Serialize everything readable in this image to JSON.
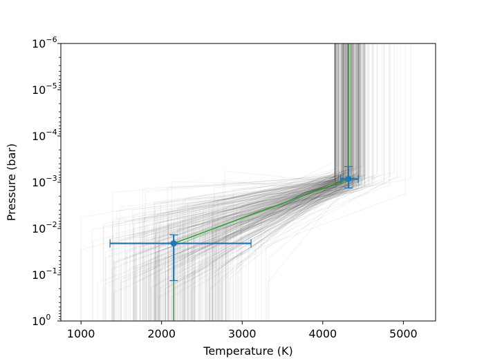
{
  "chart_data": {
    "type": "line",
    "xlabel": "Temperature (K)",
    "ylabel": "Pressure (bar)",
    "xlim": [
      750,
      5400
    ],
    "ylim": [
      1,
      1e-06
    ],
    "y_scale": "log",
    "y_inverted": true,
    "grid": false,
    "x_ticks": [
      1000,
      2000,
      3000,
      4000,
      5000
    ],
    "x_tick_labels": [
      "1000",
      "2000",
      "3000",
      "4000",
      "5000"
    ],
    "y_ticks": [
      {
        "value": 1,
        "base": "10",
        "exp": "0"
      },
      {
        "value": 0.1,
        "base": "10",
        "exp": "−1"
      },
      {
        "value": 0.01,
        "base": "10",
        "exp": "−2"
      },
      {
        "value": 0.001,
        "base": "10",
        "exp": "−3"
      },
      {
        "value": 0.0001,
        "base": "10",
        "exp": "−4"
      },
      {
        "value": 1e-05,
        "base": "10",
        "exp": "−5"
      },
      {
        "value": 1e-06,
        "base": "10",
        "exp": "−6"
      }
    ],
    "best_fit_profile": {
      "color": "#2ca02c",
      "points": [
        [
          2150,
          1
        ],
        [
          2150,
          0.021
        ],
        [
          4320,
          0.00085
        ],
        [
          4320,
          1e-06
        ]
      ]
    },
    "posterior_samples": {
      "color": "#000000",
      "count": 300,
      "description_free": true
    },
    "nodes": [
      {
        "x": 2150,
        "y": 0.021,
        "xerr": [
          790,
          960
        ],
        "yerr": [
          0.0073,
          0.113
        ],
        "color": "#1f77b4"
      },
      {
        "x": 4320,
        "y": 0.00085,
        "xerr": [
          100,
          120
        ],
        "yerr": [
          0.00039,
          0.00048
        ],
        "color": "#1f77b4"
      }
    ]
  }
}
